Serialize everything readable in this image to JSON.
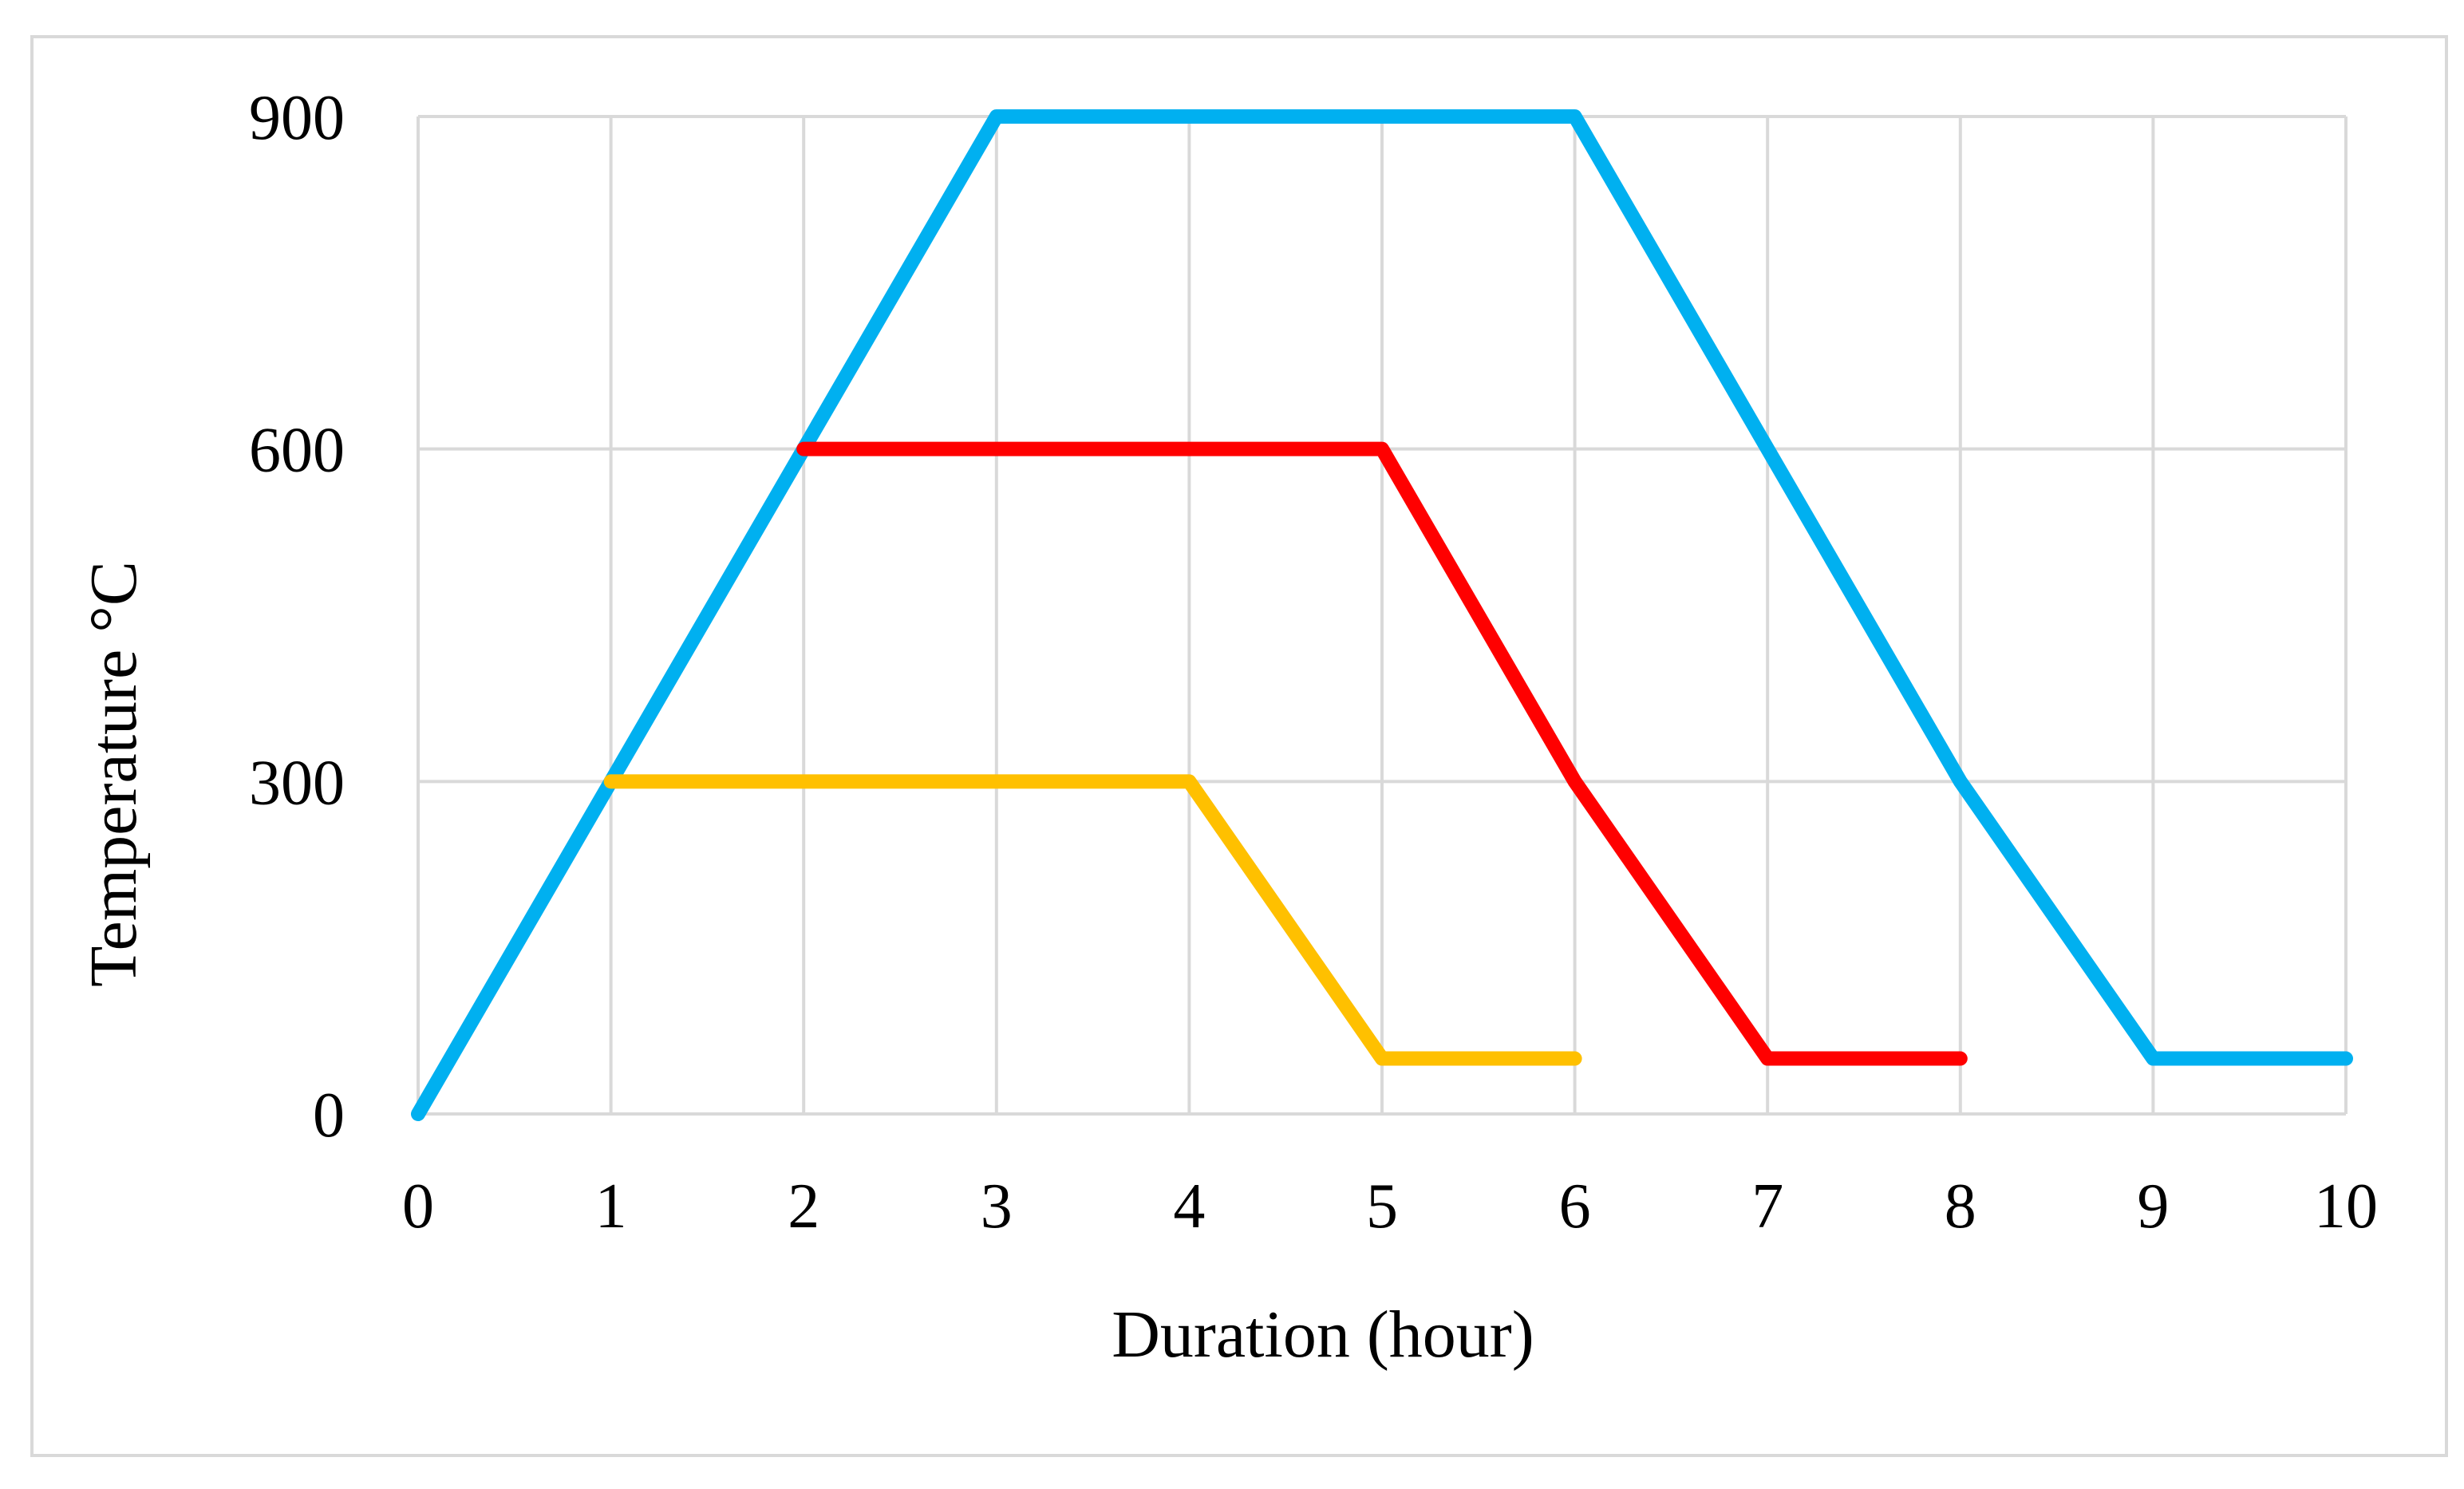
{
  "chart_data": {
    "type": "line",
    "title": "",
    "xlabel": "Duration (hour)",
    "ylabel": "Temperature °C",
    "xlim": [
      0,
      10
    ],
    "ylim": [
      0,
      900
    ],
    "x_ticks": [
      0,
      1,
      2,
      3,
      4,
      5,
      6,
      7,
      8,
      9,
      10
    ],
    "y_ticks": [
      0,
      300,
      600,
      900
    ],
    "grid": true,
    "legend": "none",
    "series": [
      {
        "color": "#00b0f0",
        "points": [
          [
            0,
            0
          ],
          [
            3,
            900
          ],
          [
            6,
            900
          ],
          [
            8,
            300
          ],
          [
            9,
            50
          ],
          [
            10,
            50
          ]
        ]
      },
      {
        "color": "#ff0000",
        "points": [
          [
            2,
            600
          ],
          [
            5,
            600
          ],
          [
            6,
            300
          ],
          [
            7,
            50
          ],
          [
            8,
            50
          ]
        ]
      },
      {
        "color": "#ffc000",
        "points": [
          [
            1,
            300
          ],
          [
            4,
            300
          ],
          [
            5,
            50
          ],
          [
            6,
            50
          ]
        ]
      }
    ]
  }
}
